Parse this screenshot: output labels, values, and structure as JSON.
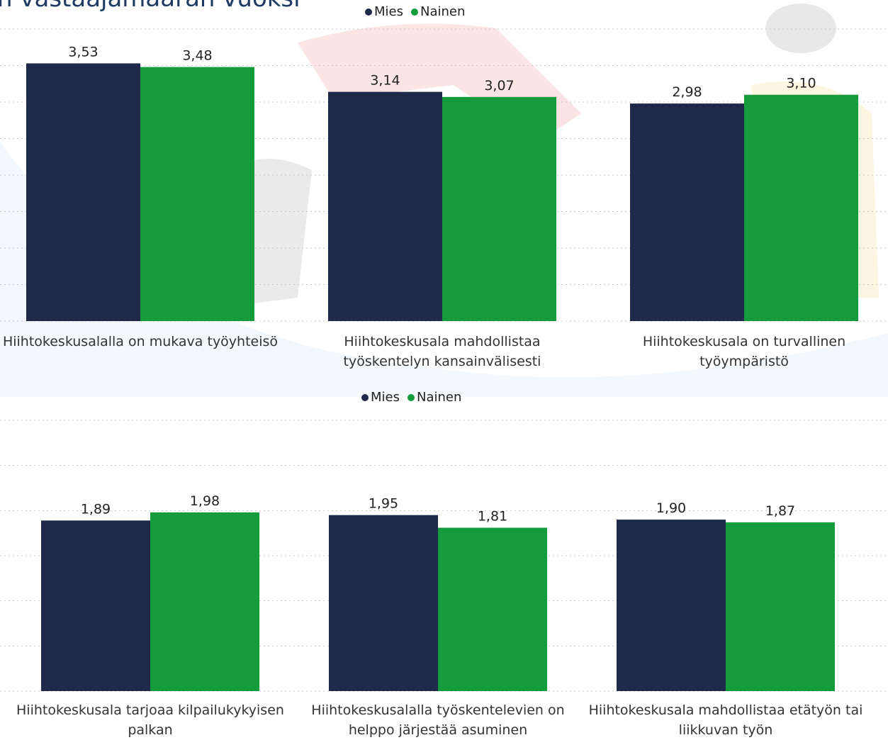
{
  "chart_data": [
    {
      "type": "bar",
      "title": "n vastaajamäärän vuoksi",
      "categories": [
        "Hiihtokeskusalalla on mukava työyhteisö",
        "Hiihtokeskusala mahdollistaa työskentelyn kansainvälisesti",
        "Hiihtokeskusala on turvallinen työympäristö"
      ],
      "series": [
        {
          "name": "Mies",
          "color": "#1f2a4a",
          "values": [
            3.53,
            3.14,
            2.98
          ],
          "value_labels": [
            "3,53",
            "3,14",
            "2,98"
          ]
        },
        {
          "name": "Nainen",
          "color": "#149b3c",
          "values": [
            3.48,
            3.07,
            3.1
          ],
          "value_labels": [
            "3,48",
            "3,07",
            "3,10"
          ]
        }
      ],
      "ylim": [
        0,
        4
      ],
      "yticks": [
        0,
        0.5,
        1,
        1.5,
        2,
        2.5,
        3,
        3.5,
        4
      ],
      "grid": true,
      "legend": "top"
    },
    {
      "type": "bar",
      "categories": [
        "Hiihtokeskusala tarjoaa kilpailukykyisen palkan",
        "Hiihtokeskusalalla työskentelevien on helppo järjestää asuminen",
        "Hiihtokeskusala mahdollistaa etätyön tai liikkuvan työn"
      ],
      "series": [
        {
          "name": "Mies",
          "color": "#1f2a4a",
          "values": [
            1.89,
            1.95,
            1.9
          ],
          "value_labels": [
            "1,89",
            "1,95",
            "1,90"
          ]
        },
        {
          "name": "Nainen",
          "color": "#149b3c",
          "values": [
            1.98,
            1.81,
            1.87
          ],
          "value_labels": [
            "1,98",
            "1,81",
            "1,87"
          ]
        }
      ],
      "ylim": [
        0,
        3
      ],
      "yticks": [
        0,
        0.5,
        1,
        1.5,
        2,
        2.5,
        3
      ],
      "grid": true,
      "legend": "top"
    }
  ]
}
